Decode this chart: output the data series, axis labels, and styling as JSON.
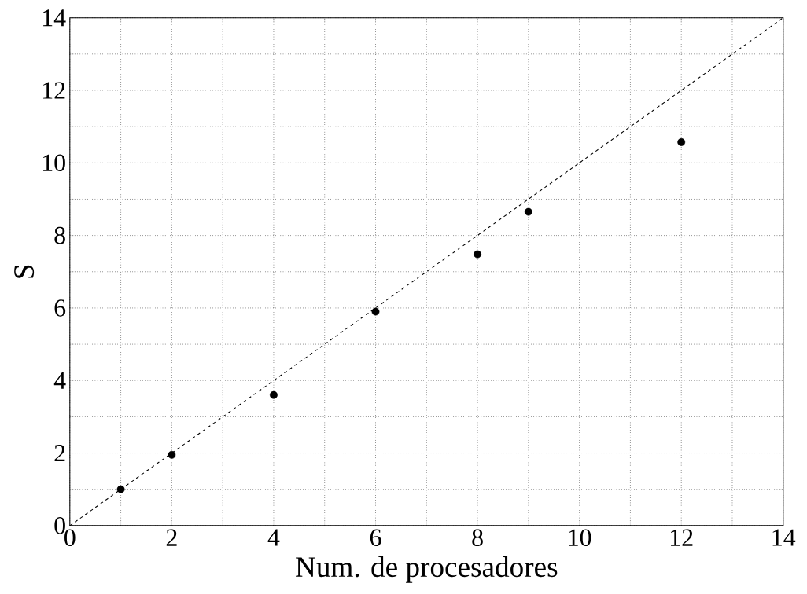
{
  "chart_data": {
    "type": "scatter",
    "xlabel": "Num. de procesadores",
    "ylabel": "S",
    "series": [
      {
        "color": "#000000",
        "marker": "circle",
        "x": [
          1,
          2,
          4,
          6,
          8,
          9,
          12
        ],
        "values": [
          1.0,
          1.95,
          3.6,
          5.9,
          7.48,
          8.65,
          10.57
        ]
      },
      {
        "type": "line",
        "color": "#000000",
        "line_style": "dashed",
        "marker": "none",
        "x": [
          0,
          14
        ],
        "values": [
          0,
          14
        ]
      }
    ],
    "xlim": [
      0,
      14
    ],
    "ylim": [
      0,
      14
    ],
    "xticks": [
      0,
      {
        "value": 1,
        "label": null
      },
      2,
      {
        "value": 3,
        "label": null
      },
      4,
      {
        "value": 5,
        "label": null
      },
      6,
      {
        "value": 7,
        "label": null
      },
      8,
      {
        "value": 9,
        "label": null
      },
      10,
      {
        "value": 11,
        "label": null
      },
      12,
      {
        "value": 13,
        "label": null
      },
      14
    ],
    "yticks": [
      0,
      {
        "value": 1,
        "label": null
      },
      2,
      {
        "value": 3,
        "label": null
      },
      4,
      {
        "value": 5,
        "label": null
      },
      6,
      {
        "value": 7,
        "label": null
      },
      8,
      {
        "value": 9,
        "label": null
      },
      10,
      {
        "value": 11,
        "label": null
      },
      12,
      {
        "value": 13,
        "label": null
      },
      14
    ],
    "grid": true
  }
}
